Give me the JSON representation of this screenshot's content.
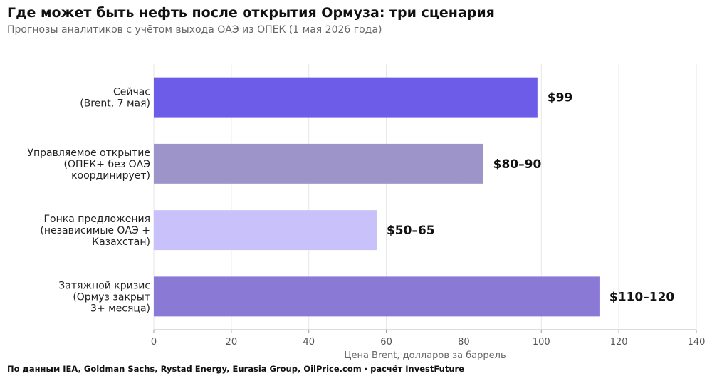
{
  "header": {
    "title": "Где может быть нефть после открытия Ормуза: три сценария",
    "subtitle": "Прогнозы аналитиков с учётом выхода ОАЭ из ОПЕК (1 мая 2026 года)"
  },
  "footer": {
    "source": "По данным IEA, Goldman Sachs, Rystad Energy, Eurasia Group, OilPrice.com · расчёт InvestFuture"
  },
  "chart_data": {
    "type": "bar",
    "orientation": "horizontal",
    "categories": [
      [
        "Сейчас",
        "(Brent, 7 мая)"
      ],
      [
        "Управляемое открытие",
        "(ОПЕК+ без ОАЭ",
        "координирует)"
      ],
      [
        "Гонка предложения",
        "(независимые ОАЭ +",
        "Казахстан)"
      ],
      [
        "Затяжной кризис",
        "(Ормуз закрыт",
        "3+ месяца)"
      ]
    ],
    "values": [
      99,
      85,
      57.5,
      115
    ],
    "data_labels": [
      "$99",
      "$80–90",
      "$50–65",
      "$110–120"
    ],
    "colors": [
      "#6c5ce7",
      "#9d95c9",
      "#c9c1fa",
      "#8a7ad6"
    ],
    "xlabel": "Цена Brent, долларов за баррель",
    "xlim": [
      0,
      140
    ],
    "xticks": [
      0,
      20,
      40,
      60,
      80,
      100,
      120,
      140
    ],
    "grid": true
  }
}
